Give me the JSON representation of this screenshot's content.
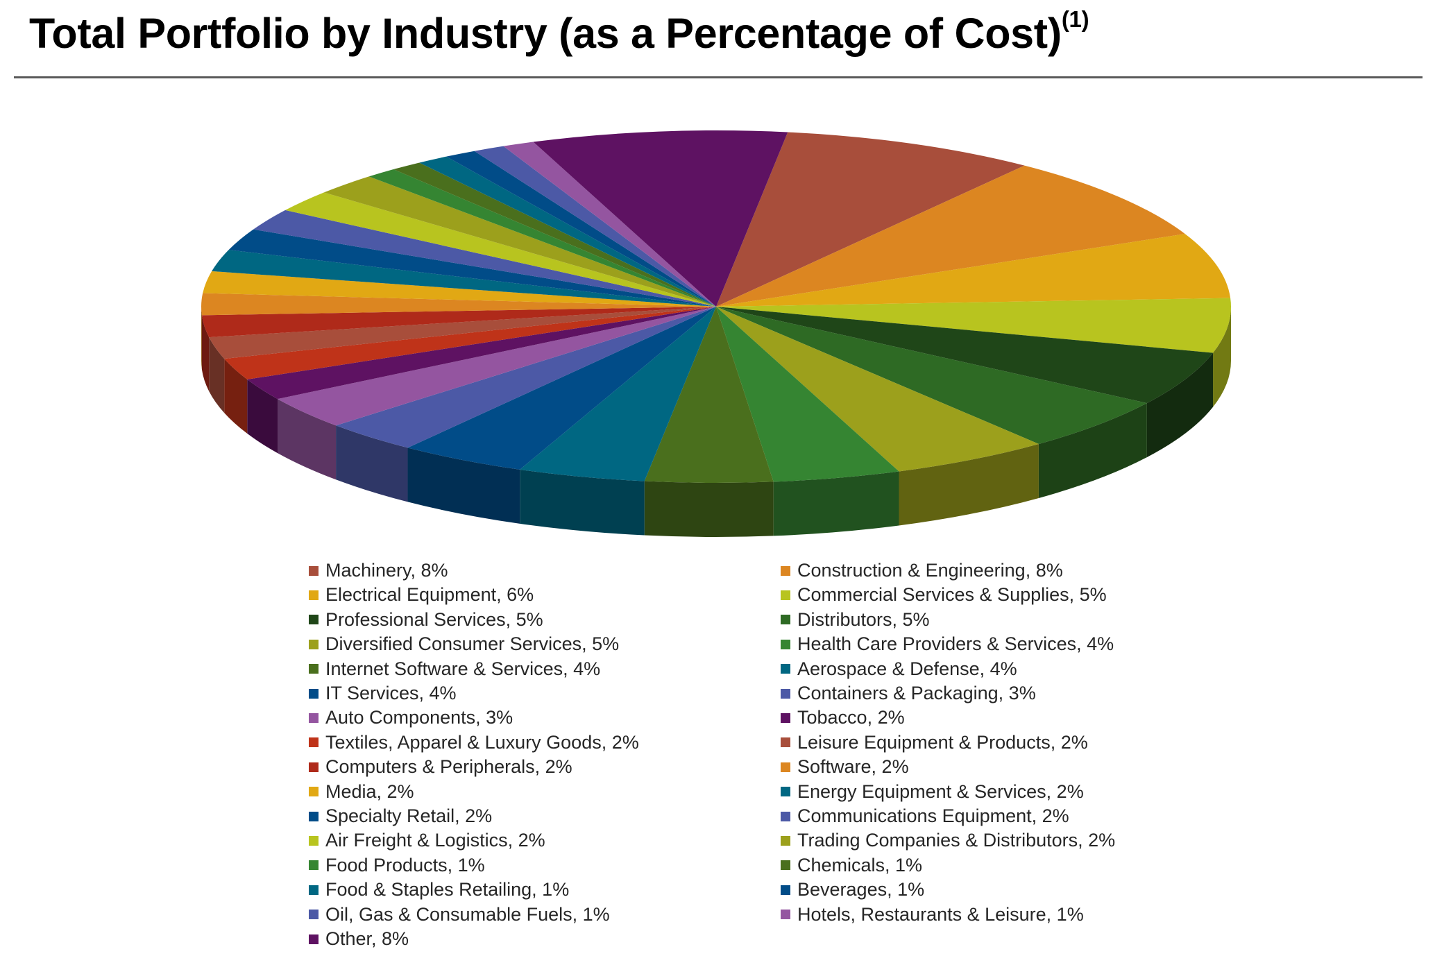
{
  "title": {
    "main": "Total Portfolio by Industry (as a Percentage of Cost)",
    "sup": "(1)"
  },
  "chart_data": {
    "type": "pie",
    "title": "Total Portfolio by Industry (as a Percentage of Cost)(1)",
    "style": "3d",
    "legend_placement": "bottom",
    "slices": [
      {
        "label": "Machinery",
        "value": 8,
        "display": "Machinery, 8%",
        "color": "#A84E3B"
      },
      {
        "label": "Construction & Engineering",
        "value": 8,
        "display": "Construction & Engineering, 8%",
        "color": "#DC8621"
      },
      {
        "label": "Electrical Equipment",
        "value": 6,
        "display": "Electrical Equipment, 6%",
        "color": "#E1A814"
      },
      {
        "label": "Commercial Services & Supplies",
        "value": 5,
        "display": "Commercial Services & Supplies, 5%",
        "color": "#B8C41F"
      },
      {
        "label": "Professional Services",
        "value": 5,
        "display": "Professional Services, 5%",
        "color": "#1F4618"
      },
      {
        "label": "Distributors",
        "value": 5,
        "display": "Distributors, 5%",
        "color": "#2E6A24"
      },
      {
        "label": "Diversified Consumer Services",
        "value": 5,
        "display": "Diversified Consumer Services, 5%",
        "color": "#9CA01C"
      },
      {
        "label": "Health Care Providers & Services",
        "value": 4,
        "display": "Health Care Providers & Services, 4%",
        "color": "#358532"
      },
      {
        "label": "Internet Software & Services",
        "value": 4,
        "display": "Internet Software & Services, 4%",
        "color": "#4A6F1D"
      },
      {
        "label": "Aerospace & Defense",
        "value": 4,
        "display": "Aerospace & Defense, 4%",
        "color": "#006782"
      },
      {
        "label": "IT Services",
        "value": 4,
        "display": "IT Services, 4%",
        "color": "#014C88"
      },
      {
        "label": "Containers & Packaging",
        "value": 3,
        "display": "Containers & Packaging, 3%",
        "color": "#4C59A6"
      },
      {
        "label": "Auto Components",
        "value": 3,
        "display": "Auto Components, 3%",
        "color": "#9455A0"
      },
      {
        "label": "Tobacco",
        "value": 2,
        "display": "Tobacco, 2%",
        "color": "#5E1262"
      },
      {
        "label": "Textiles, Apparel & Luxury Goods",
        "value": 2,
        "display": "Textiles, Apparel & Luxury Goods, 2%",
        "color": "#BF3319"
      },
      {
        "label": "Leisure Equipment & Products",
        "value": 2,
        "display": "Leisure Equipment & Products, 2%",
        "color": "#A84E3B"
      },
      {
        "label": "Computers & Peripherals",
        "value": 2,
        "display": "Computers & Peripherals, 2%",
        "color": "#AF2A1A"
      },
      {
        "label": "Software",
        "value": 2,
        "display": "Software, 2%",
        "color": "#DC8621"
      },
      {
        "label": "Media",
        "value": 2,
        "display": "Media, 2%",
        "color": "#E1A814"
      },
      {
        "label": "Energy Equipment & Services",
        "value": 2,
        "display": "Energy Equipment & Services, 2%",
        "color": "#006782"
      },
      {
        "label": "Specialty Retail",
        "value": 2,
        "display": "Specialty Retail, 2%",
        "color": "#014C88"
      },
      {
        "label": "Communications Equipment",
        "value": 2,
        "display": "Communications Equipment, 2%",
        "color": "#4C59A6"
      },
      {
        "label": "Air Freight & Logistics",
        "value": 2,
        "display": "Air Freight & Logistics, 2%",
        "color": "#B8C41F"
      },
      {
        "label": "Trading Companies & Distributors",
        "value": 2,
        "display": "Trading Companies & Distributors, 2%",
        "color": "#9CA01C"
      },
      {
        "label": "Food Products",
        "value": 1,
        "display": "Food Products, 1%",
        "color": "#358532"
      },
      {
        "label": "Chemicals",
        "value": 1,
        "display": "Chemicals, 1%",
        "color": "#4A6F1D"
      },
      {
        "label": "Food & Staples Retailing",
        "value": 1,
        "display": "Food & Staples Retailing, 1%",
        "color": "#006782"
      },
      {
        "label": "Beverages",
        "value": 1,
        "display": "Beverages, 1%",
        "color": "#014C88"
      },
      {
        "label": "Oil, Gas & Consumable Fuels",
        "value": 1,
        "display": "Oil, Gas & Consumable Fuels, 1%",
        "color": "#4C59A6"
      },
      {
        "label": "Hotels, Restaurants & Leisure",
        "value": 1,
        "display": "Hotels, Restaurants & Leisure, 1%",
        "color": "#9455A0"
      },
      {
        "label": "Other",
        "value": 8,
        "display": "Other, 8%",
        "color": "#5E1262"
      }
    ]
  }
}
